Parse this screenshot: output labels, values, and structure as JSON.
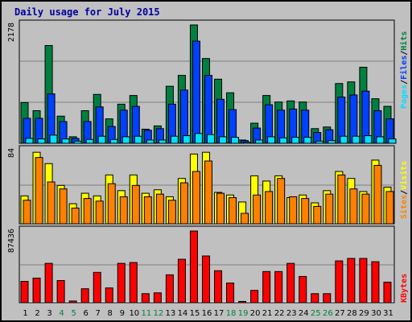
{
  "title": "Daily usage for July 2015",
  "colors": {
    "hits": "#008040",
    "files": "#0040ff",
    "pages": "#00e0ff",
    "visits": "#ffff00",
    "sites": "#ff8000",
    "kbytes": "#ff0000",
    "weekday_label": "#000000",
    "weekend_label": "#008040",
    "title": "#0000a0",
    "panel_bg": "#c0c0c0",
    "grid": "#808080"
  },
  "chart_data": [
    {
      "type": "bar",
      "title": "Daily usage for July 2015",
      "ylabel_max": "2178",
      "legend": [
        "Pages",
        "Files",
        "Hits"
      ],
      "ylim": [
        0,
        2178
      ],
      "categories": [
        "1",
        "2",
        "3",
        "4",
        "5",
        "6",
        "7",
        "8",
        "9",
        "10",
        "11",
        "12",
        "13",
        "14",
        "15",
        "16",
        "17",
        "18",
        "19",
        "20",
        "21",
        "22",
        "23",
        "24",
        "25",
        "26",
        "27",
        "28",
        "29",
        "30",
        "31"
      ],
      "series": [
        {
          "name": "Hits",
          "values": [
            750,
            600,
            1800,
            500,
            120,
            600,
            900,
            450,
            720,
            880,
            260,
            320,
            1050,
            1250,
            2178,
            1560,
            1180,
            930,
            60,
            370,
            880,
            760,
            780,
            760,
            270,
            300,
            1100,
            1130,
            1400,
            820,
            680
          ]
        },
        {
          "name": "Files",
          "values": [
            460,
            460,
            910,
            400,
            90,
            400,
            670,
            310,
            610,
            680,
            240,
            270,
            720,
            980,
            1880,
            1250,
            810,
            620,
            50,
            280,
            710,
            610,
            630,
            610,
            200,
            250,
            850,
            890,
            960,
            600,
            450
          ]
        },
        {
          "name": "Pages",
          "values": [
            90,
            80,
            150,
            80,
            40,
            70,
            130,
            70,
            120,
            130,
            60,
            60,
            130,
            140,
            180,
            160,
            120,
            110,
            20,
            60,
            120,
            100,
            110,
            110,
            40,
            50,
            130,
            130,
            140,
            120,
            80
          ]
        }
      ]
    },
    {
      "type": "bar",
      "ylabel_max": "84",
      "legend": [
        "Sites",
        "Visits"
      ],
      "ylim": [
        0,
        84
      ],
      "categories": [
        "1",
        "2",
        "3",
        "4",
        "5",
        "6",
        "7",
        "8",
        "9",
        "10",
        "11",
        "12",
        "13",
        "14",
        "15",
        "16",
        "17",
        "18",
        "19",
        "20",
        "21",
        "22",
        "23",
        "24",
        "25",
        "26",
        "27",
        "28",
        "29",
        "30",
        "31"
      ],
      "series": [
        {
          "name": "Visits",
          "values": [
            32,
            82,
            69,
            44,
            23,
            35,
            32,
            56,
            38,
            56,
            35,
            39,
            31,
            52,
            80,
            82,
            36,
            33,
            25,
            55,
            49,
            55,
            30,
            33,
            24,
            38,
            60,
            52,
            37,
            73,
            42
          ]
        },
        {
          "name": "Sites",
          "values": [
            27,
            76,
            48,
            40,
            18,
            29,
            26,
            46,
            31,
            44,
            31,
            34,
            27,
            47,
            60,
            72,
            35,
            30,
            12,
            33,
            37,
            52,
            31,
            29,
            20,
            34,
            56,
            40,
            34,
            67,
            37
          ]
        }
      ]
    },
    {
      "type": "bar",
      "ylabel_max": "87436",
      "legend": [
        "KBytes"
      ],
      "ylim": [
        0,
        87436
      ],
      "categories": [
        "1",
        "2",
        "3",
        "4",
        "5",
        "6",
        "7",
        "8",
        "9",
        "10",
        "11",
        "12",
        "13",
        "14",
        "15",
        "16",
        "17",
        "18",
        "19",
        "20",
        "21",
        "22",
        "23",
        "24",
        "25",
        "26",
        "27",
        "28",
        "29",
        "30",
        "31"
      ],
      "series": [
        {
          "name": "KBytes",
          "values": [
            26000,
            30000,
            48000,
            27000,
            2000,
            17000,
            37000,
            18000,
            48000,
            49000,
            11000,
            12000,
            34000,
            53000,
            87436,
            57000,
            39000,
            24000,
            1500,
            15000,
            38000,
            38000,
            48000,
            32000,
            11000,
            11000,
            51000,
            54000,
            54000,
            50000,
            25000
          ]
        }
      ]
    }
  ],
  "weekend_days": [
    "4",
    "5",
    "11",
    "12",
    "18",
    "19",
    "25",
    "26"
  ]
}
